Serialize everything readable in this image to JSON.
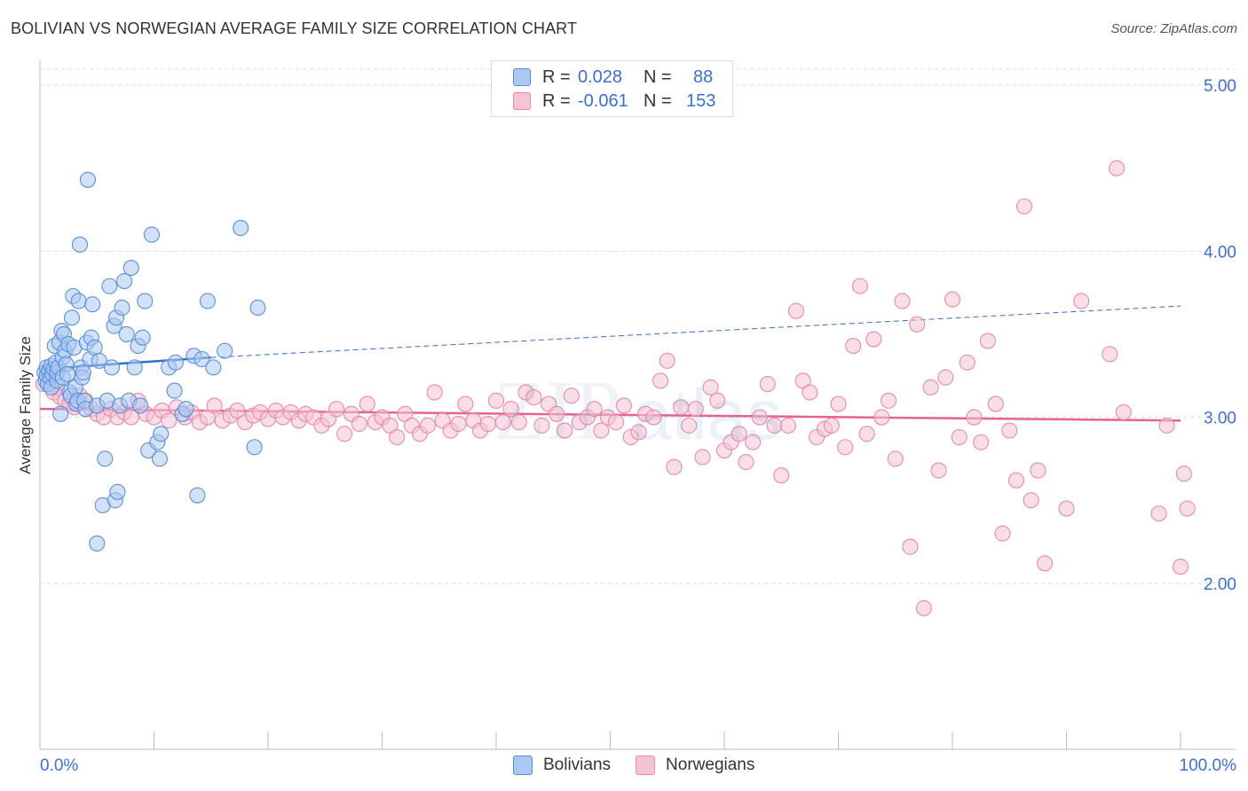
{
  "title": "BOLIVIAN VS NORWEGIAN AVERAGE FAMILY SIZE CORRELATION CHART",
  "source": "Source: ZipAtlas.com",
  "legend": {
    "bolivians": {
      "r_label": "R =",
      "r_value": "0.028",
      "n_label": "N =",
      "n_value": "88"
    },
    "norwegians": {
      "r_label": "R =",
      "r_value": "-0.061",
      "n_label": "N =",
      "n_value": "153"
    }
  },
  "bottom_legend": {
    "bolivians": "Bolivians",
    "norwegians": "Norwegians"
  },
  "colors": {
    "blue_fill": "#a9c8f2",
    "blue_stroke": "#5b8fd9",
    "blue_line": "#2f6fd0",
    "pink_fill": "#f6c3d3",
    "pink_stroke": "#e88aa8",
    "pink_line": "#e4638f",
    "tick_label": "#3b6fd6",
    "grid": "#dddddd"
  },
  "chart_data": {
    "type": "scatter",
    "title": "BOLIVIAN VS NORWEGIAN AVERAGE FAMILY SIZE CORRELATION CHART",
    "xlabel": "",
    "ylabel": "Average Family Size",
    "xlim": [
      0,
      100
    ],
    "ylim": [
      1.0,
      5.15
    ],
    "x_tick_labels": [
      "0.0%",
      "100.0%"
    ],
    "y_ticks": [
      2.0,
      3.0,
      4.0,
      5.0
    ],
    "y_tick_labels": [
      "2.00",
      "3.00",
      "4.00",
      "5.00"
    ],
    "grid": true,
    "legend_position": "top-center",
    "series": [
      {
        "name": "Bolivians",
        "trend": {
          "x": [
            0,
            15
          ],
          "y": [
            3.29,
            3.36
          ],
          "dashed_extension_to": [
            100,
            3.67
          ]
        },
        "points": [
          [
            0.4,
            3.27
          ],
          [
            0.5,
            3.22
          ],
          [
            0.6,
            3.3
          ],
          [
            0.6,
            3.25
          ],
          [
            0.7,
            3.2
          ],
          [
            0.8,
            3.28
          ],
          [
            0.9,
            3.24
          ],
          [
            1.0,
            3.31
          ],
          [
            1.0,
            3.18
          ],
          [
            1.1,
            3.26
          ],
          [
            1.2,
            3.29
          ],
          [
            1.3,
            3.43
          ],
          [
            1.4,
            3.33
          ],
          [
            1.5,
            3.22
          ],
          [
            1.5,
            3.27
          ],
          [
            1.6,
            3.3
          ],
          [
            1.7,
            3.45
          ],
          [
            1.8,
            3.02
          ],
          [
            1.9,
            3.52
          ],
          [
            2.0,
            3.36
          ],
          [
            2.0,
            3.24
          ],
          [
            2.1,
            3.5
          ],
          [
            2.2,
            3.4
          ],
          [
            2.3,
            3.32
          ],
          [
            2.4,
            3.26
          ],
          [
            2.5,
            3.44
          ],
          [
            2.6,
            3.15
          ],
          [
            2.7,
            3.13
          ],
          [
            2.8,
            3.6
          ],
          [
            2.9,
            3.73
          ],
          [
            3.0,
            3.42
          ],
          [
            3.1,
            3.18
          ],
          [
            3.2,
            3.08
          ],
          [
            3.3,
            3.1
          ],
          [
            3.4,
            3.7
          ],
          [
            3.5,
            4.04
          ],
          [
            3.6,
            3.3
          ],
          [
            3.7,
            3.24
          ],
          [
            3.8,
            3.27
          ],
          [
            3.9,
            3.1
          ],
          [
            4.0,
            3.05
          ],
          [
            4.1,
            3.45
          ],
          [
            4.2,
            4.43
          ],
          [
            4.4,
            3.35
          ],
          [
            4.5,
            3.48
          ],
          [
            4.6,
            3.68
          ],
          [
            4.8,
            3.42
          ],
          [
            5.0,
            2.24
          ],
          [
            5.0,
            3.07
          ],
          [
            5.2,
            3.34
          ],
          [
            5.5,
            2.47
          ],
          [
            5.7,
            2.75
          ],
          [
            5.9,
            3.1
          ],
          [
            6.1,
            3.79
          ],
          [
            6.3,
            3.3
          ],
          [
            6.5,
            3.55
          ],
          [
            6.6,
            2.5
          ],
          [
            6.7,
            3.6
          ],
          [
            6.8,
            2.55
          ],
          [
            7.0,
            3.07
          ],
          [
            7.2,
            3.66
          ],
          [
            7.4,
            3.82
          ],
          [
            7.6,
            3.5
          ],
          [
            7.8,
            3.1
          ],
          [
            8.0,
            3.9
          ],
          [
            8.3,
            3.3
          ],
          [
            8.6,
            3.43
          ],
          [
            8.8,
            3.07
          ],
          [
            9.0,
            3.48
          ],
          [
            9.2,
            3.7
          ],
          [
            9.5,
            2.8
          ],
          [
            9.8,
            4.1
          ],
          [
            10.3,
            2.85
          ],
          [
            10.5,
            2.75
          ],
          [
            10.6,
            2.9
          ],
          [
            11.3,
            3.3
          ],
          [
            11.8,
            3.16
          ],
          [
            11.9,
            3.33
          ],
          [
            12.5,
            3.02
          ],
          [
            12.8,
            3.05
          ],
          [
            13.5,
            3.37
          ],
          [
            13.8,
            2.53
          ],
          [
            14.2,
            3.35
          ],
          [
            14.7,
            3.7
          ],
          [
            15.2,
            3.3
          ],
          [
            16.2,
            3.4
          ],
          [
            17.6,
            4.14
          ],
          [
            18.8,
            2.82
          ],
          [
            19.1,
            3.66
          ]
        ]
      },
      {
        "name": "Norwegians",
        "trend": {
          "x": [
            0,
            100
          ],
          "y": [
            3.05,
            2.98
          ]
        },
        "points": [
          [
            0.3,
            3.2
          ],
          [
            0.6,
            3.27
          ],
          [
            0.9,
            3.23
          ],
          [
            1.2,
            3.15
          ],
          [
            1.5,
            3.18
          ],
          [
            1.8,
            3.12
          ],
          [
            2.2,
            3.1
          ],
          [
            2.6,
            3.08
          ],
          [
            3.0,
            3.06
          ],
          [
            3.5,
            3.13
          ],
          [
            4.0,
            3.1
          ],
          [
            4.5,
            3.05
          ],
          [
            5.0,
            3.02
          ],
          [
            5.6,
            3.0
          ],
          [
            6.2,
            3.05
          ],
          [
            6.8,
            3.0
          ],
          [
            7.4,
            3.03
          ],
          [
            8.0,
            3.0
          ],
          [
            8.6,
            3.1
          ],
          [
            9.3,
            3.02
          ],
          [
            10.0,
            3.0
          ],
          [
            10.7,
            3.04
          ],
          [
            11.3,
            2.98
          ],
          [
            12.0,
            3.06
          ],
          [
            12.7,
            3.0
          ],
          [
            13.3,
            3.03
          ],
          [
            14.0,
            2.97
          ],
          [
            14.7,
            3.0
          ],
          [
            15.3,
            3.07
          ],
          [
            16.0,
            2.98
          ],
          [
            16.7,
            3.01
          ],
          [
            17.3,
            3.04
          ],
          [
            18.0,
            2.97
          ],
          [
            18.7,
            3.01
          ],
          [
            19.3,
            3.03
          ],
          [
            20.0,
            2.99
          ],
          [
            20.7,
            3.04
          ],
          [
            21.3,
            3.0
          ],
          [
            22.0,
            3.03
          ],
          [
            22.7,
            2.98
          ],
          [
            23.3,
            3.02
          ],
          [
            24.0,
            3.0
          ],
          [
            24.7,
            2.95
          ],
          [
            25.3,
            2.99
          ],
          [
            26.0,
            3.05
          ],
          [
            26.7,
            2.9
          ],
          [
            27.3,
            3.02
          ],
          [
            28.0,
            2.96
          ],
          [
            28.7,
            3.08
          ],
          [
            29.4,
            2.97
          ],
          [
            30.0,
            3.0
          ],
          [
            30.7,
            2.95
          ],
          [
            31.3,
            2.88
          ],
          [
            32.0,
            3.02
          ],
          [
            32.6,
            2.95
          ],
          [
            33.3,
            2.9
          ],
          [
            34.0,
            2.95
          ],
          [
            34.6,
            3.15
          ],
          [
            35.3,
            2.98
          ],
          [
            36.0,
            2.92
          ],
          [
            36.7,
            2.96
          ],
          [
            37.3,
            3.08
          ],
          [
            38.0,
            2.98
          ],
          [
            38.6,
            2.92
          ],
          [
            39.3,
            2.96
          ],
          [
            40.0,
            3.1
          ],
          [
            40.6,
            2.97
          ],
          [
            41.3,
            3.05
          ],
          [
            42.0,
            2.97
          ],
          [
            42.6,
            3.15
          ],
          [
            43.3,
            3.12
          ],
          [
            44.0,
            2.95
          ],
          [
            44.6,
            3.08
          ],
          [
            45.3,
            3.02
          ],
          [
            46.0,
            2.92
          ],
          [
            46.6,
            3.13
          ],
          [
            47.3,
            2.97
          ],
          [
            48.0,
            3.0
          ],
          [
            48.6,
            3.05
          ],
          [
            49.2,
            2.92
          ],
          [
            49.8,
            3.0
          ],
          [
            50.5,
            2.97
          ],
          [
            51.2,
            3.07
          ],
          [
            51.8,
            2.88
          ],
          [
            52.5,
            2.91
          ],
          [
            53.1,
            3.02
          ],
          [
            53.8,
            3.0
          ],
          [
            54.4,
            3.22
          ],
          [
            55.0,
            3.34
          ],
          [
            55.6,
            2.7
          ],
          [
            56.2,
            3.06
          ],
          [
            56.9,
            2.95
          ],
          [
            57.5,
            3.05
          ],
          [
            58.1,
            2.76
          ],
          [
            58.8,
            3.18
          ],
          [
            59.4,
            3.1
          ],
          [
            60.0,
            2.8
          ],
          [
            60.6,
            2.85
          ],
          [
            61.3,
            2.9
          ],
          [
            61.9,
            2.73
          ],
          [
            62.5,
            2.85
          ],
          [
            63.1,
            3.0
          ],
          [
            63.8,
            3.2
          ],
          [
            64.4,
            2.95
          ],
          [
            65.0,
            2.65
          ],
          [
            65.6,
            2.95
          ],
          [
            66.3,
            3.64
          ],
          [
            66.9,
            3.22
          ],
          [
            67.5,
            3.15
          ],
          [
            68.1,
            2.88
          ],
          [
            68.8,
            2.93
          ],
          [
            69.4,
            2.95
          ],
          [
            70.0,
            3.08
          ],
          [
            70.6,
            2.82
          ],
          [
            71.3,
            3.43
          ],
          [
            71.9,
            3.79
          ],
          [
            72.5,
            2.9
          ],
          [
            73.1,
            3.47
          ],
          [
            73.8,
            3.0
          ],
          [
            74.4,
            3.1
          ],
          [
            75.0,
            2.75
          ],
          [
            75.6,
            3.7
          ],
          [
            76.3,
            2.22
          ],
          [
            76.9,
            3.56
          ],
          [
            77.5,
            1.85
          ],
          [
            78.1,
            3.18
          ],
          [
            78.8,
            2.68
          ],
          [
            79.4,
            3.24
          ],
          [
            80.0,
            3.71
          ],
          [
            80.6,
            2.88
          ],
          [
            81.3,
            3.33
          ],
          [
            81.9,
            3.0
          ],
          [
            82.5,
            2.85
          ],
          [
            83.1,
            3.46
          ],
          [
            83.8,
            3.08
          ],
          [
            84.4,
            2.3
          ],
          [
            85.0,
            2.92
          ],
          [
            85.6,
            2.62
          ],
          [
            86.3,
            4.27
          ],
          [
            86.9,
            2.5
          ],
          [
            87.5,
            2.68
          ],
          [
            88.1,
            2.12
          ],
          [
            90.0,
            2.45
          ],
          [
            91.3,
            3.7
          ],
          [
            93.8,
            3.38
          ],
          [
            94.4,
            4.5
          ],
          [
            95.0,
            3.03
          ],
          [
            98.1,
            2.42
          ],
          [
            98.8,
            2.95
          ],
          [
            100.0,
            2.1
          ],
          [
            100.3,
            2.66
          ],
          [
            100.6,
            2.45
          ]
        ]
      }
    ]
  }
}
